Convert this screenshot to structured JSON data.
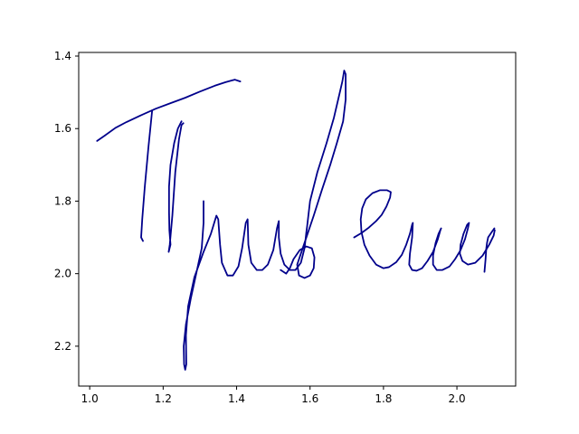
{
  "chart_data": {
    "type": "line",
    "title": "",
    "xlabel": "",
    "ylabel": "",
    "xlim": [
      0.97,
      2.16
    ],
    "ylim": [
      2.31,
      1.39
    ],
    "y_inverted": true,
    "grid": false,
    "legend": "none",
    "x_ticks": [
      1.0,
      1.2,
      1.4,
      1.6,
      1.8,
      2.0
    ],
    "x_tick_labels": [
      "1.0",
      "1.2",
      "1.4",
      "1.6",
      "1.8",
      "2.0"
    ],
    "y_ticks": [
      1.4,
      1.6,
      1.8,
      2.0,
      2.2
    ],
    "y_tick_labels": [
      "1.4",
      "1.6",
      "1.8",
      "2.0",
      "2.2"
    ],
    "series": [
      {
        "color": "#00008b",
        "strokes": [
          [
            [
              1.02,
              1.634
            ],
            [
              1.04,
              1.62
            ],
            [
              1.07,
              1.598
            ],
            [
              1.1,
              1.582
            ],
            [
              1.14,
              1.563
            ],
            [
              1.18,
              1.545
            ],
            [
              1.22,
              1.53
            ],
            [
              1.26,
              1.515
            ],
            [
              1.3,
              1.498
            ],
            [
              1.34,
              1.482
            ],
            [
              1.37,
              1.472
            ],
            [
              1.395,
              1.465
            ],
            [
              1.41,
              1.47
            ]
          ],
          [
            [
              1.17,
              1.55
            ],
            [
              1.16,
              1.65
            ],
            [
              1.15,
              1.76
            ],
            [
              1.143,
              1.85
            ],
            [
              1.14,
              1.9
            ],
            [
              1.145,
              1.91
            ]
          ],
          [
            [
              1.25,
              1.58
            ],
            [
              1.24,
              1.6
            ],
            [
              1.23,
              1.64
            ],
            [
              1.22,
              1.7
            ],
            [
              1.216,
              1.76
            ],
            [
              1.216,
              1.83
            ],
            [
              1.217,
              1.88
            ],
            [
              1.22,
              1.92
            ],
            [
              1.215,
              1.94
            ],
            [
              1.218,
              1.92
            ],
            [
              1.225,
              1.84
            ],
            [
              1.233,
              1.72
            ],
            [
              1.243,
              1.63
            ],
            [
              1.25,
              1.59
            ],
            [
              1.255,
              1.585
            ]
          ],
          [
            [
              1.31,
              1.8
            ],
            [
              1.31,
              1.86
            ],
            [
              1.305,
              1.93
            ],
            [
              1.29,
              2.0
            ],
            [
              1.275,
              2.07
            ],
            [
              1.262,
              2.14
            ],
            [
              1.256,
              2.2
            ],
            [
              1.257,
              2.25
            ],
            [
              1.26,
              2.265
            ],
            [
              1.263,
              2.25
            ],
            [
              1.262,
              2.17
            ],
            [
              1.268,
              2.09
            ],
            [
              1.285,
              2.01
            ],
            [
              1.31,
              1.94
            ],
            [
              1.33,
              1.89
            ],
            [
              1.345,
              1.84
            ],
            [
              1.35,
              1.85
            ],
            [
              1.355,
              1.92
            ],
            [
              1.36,
              1.97
            ],
            [
              1.375,
              2.005
            ],
            [
              1.39,
              2.005
            ],
            [
              1.405,
              1.98
            ],
            [
              1.415,
              1.93
            ],
            [
              1.425,
              1.86
            ],
            [
              1.43,
              1.85
            ],
            [
              1.432,
              1.92
            ],
            [
              1.44,
              1.97
            ],
            [
              1.455,
              1.99
            ],
            [
              1.47,
              1.99
            ],
            [
              1.485,
              1.975
            ],
            [
              1.5,
              1.935
            ],
            [
              1.51,
              1.875
            ],
            [
              1.515,
              1.855
            ],
            [
              1.515,
              1.9
            ],
            [
              1.52,
              1.945
            ],
            [
              1.53,
              1.975
            ],
            [
              1.545,
              1.99
            ],
            [
              1.56,
              1.99
            ],
            [
              1.575,
              1.97
            ],
            [
              1.585,
              1.93
            ],
            [
              1.59,
              1.885
            ],
            [
              1.592,
              1.87
            ],
            [
              1.6,
              1.8
            ],
            [
              1.62,
              1.72
            ],
            [
              1.645,
              1.64
            ],
            [
              1.665,
              1.57
            ],
            [
              1.68,
              1.505
            ],
            [
              1.688,
              1.47
            ],
            [
              1.693,
              1.44
            ],
            [
              1.697,
              1.45
            ],
            [
              1.697,
              1.52
            ],
            [
              1.69,
              1.58
            ],
            [
              1.673,
              1.64
            ],
            [
              1.655,
              1.7
            ],
            [
              1.632,
              1.77
            ],
            [
              1.61,
              1.84
            ],
            [
              1.59,
              1.9
            ],
            [
              1.575,
              1.945
            ],
            [
              1.565,
              1.975
            ],
            [
              1.57,
              2.005
            ],
            [
              1.585,
              2.012
            ],
            [
              1.6,
              2.005
            ],
            [
              1.61,
              1.985
            ],
            [
              1.612,
              1.955
            ],
            [
              1.605,
              1.93
            ],
            [
              1.59,
              1.925
            ],
            [
              1.572,
              1.935
            ],
            [
              1.555,
              1.96
            ],
            [
              1.545,
              1.985
            ],
            [
              1.535,
              2.0
            ],
            [
              1.52,
              1.99
            ]
          ],
          [
            [
              1.72,
              1.9
            ],
            [
              1.74,
              1.888
            ],
            [
              1.76,
              1.873
            ],
            [
              1.78,
              1.855
            ],
            [
              1.795,
              1.838
            ],
            [
              1.808,
              1.815
            ],
            [
              1.818,
              1.79
            ],
            [
              1.82,
              1.775
            ],
            [
              1.81,
              1.77
            ],
            [
              1.79,
              1.77
            ],
            [
              1.77,
              1.778
            ],
            [
              1.752,
              1.795
            ],
            [
              1.742,
              1.82
            ],
            [
              1.738,
              1.85
            ],
            [
              1.74,
              1.885
            ],
            [
              1.748,
              1.92
            ],
            [
              1.762,
              1.95
            ],
            [
              1.78,
              1.975
            ],
            [
              1.8,
              1.985
            ],
            [
              1.815,
              1.982
            ],
            [
              1.835,
              1.968
            ],
            [
              1.85,
              1.948
            ],
            [
              1.862,
              1.92
            ],
            [
              1.872,
              1.89
            ],
            [
              1.878,
              1.865
            ],
            [
              1.88,
              1.86
            ],
            [
              1.878,
              1.9
            ],
            [
              1.872,
              1.945
            ],
            [
              1.87,
              1.975
            ],
            [
              1.878,
              1.99
            ],
            [
              1.89,
              1.992
            ],
            [
              1.905,
              1.985
            ],
            [
              1.92,
              1.965
            ],
            [
              1.935,
              1.94
            ],
            [
              1.948,
              1.905
            ],
            [
              1.955,
              1.88
            ],
            [
              1.957,
              1.875
            ],
            [
              1.95,
              1.89
            ],
            [
              1.942,
              1.915
            ],
            [
              1.935,
              1.95
            ],
            [
              1.935,
              1.975
            ],
            [
              1.945,
              1.99
            ],
            [
              1.96,
              1.99
            ],
            [
              1.98,
              1.98
            ],
            [
              1.995,
              1.96
            ],
            [
              2.01,
              1.935
            ],
            [
              2.022,
              1.905
            ],
            [
              2.03,
              1.875
            ],
            [
              2.033,
              1.86
            ],
            [
              2.028,
              1.865
            ],
            [
              2.018,
              1.89
            ],
            [
              2.01,
              1.92
            ],
            [
              2.008,
              1.945
            ],
            [
              2.015,
              1.965
            ],
            [
              2.03,
              1.975
            ],
            [
              2.05,
              1.97
            ],
            [
              2.07,
              1.95
            ],
            [
              2.088,
              1.92
            ],
            [
              2.1,
              1.895
            ],
            [
              2.103,
              1.88
            ]
          ],
          [
            [
              2.075,
              1.995
            ],
            [
              2.078,
              1.96
            ],
            [
              2.08,
              1.93
            ],
            [
              2.082,
              1.915
            ],
            [
              2.085,
              1.9
            ],
            [
              2.095,
              1.885
            ],
            [
              2.102,
              1.875
            ]
          ]
        ]
      }
    ]
  }
}
